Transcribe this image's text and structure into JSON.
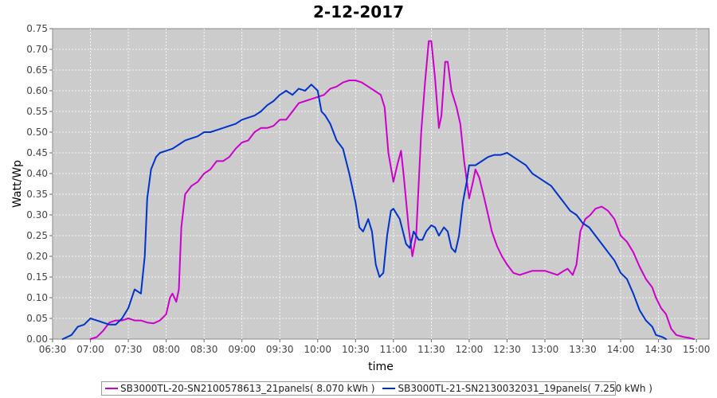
{
  "chart_data": {
    "type": "line",
    "title": "2-12-2017",
    "xlabel": "time",
    "ylabel": "Watt/Wp",
    "xlim": [
      "06:30",
      "15:10"
    ],
    "ylim": [
      0,
      0.75
    ],
    "x_ticks": [
      "06:30",
      "07:00",
      "07:30",
      "08:00",
      "08:30",
      "09:00",
      "09:30",
      "10:00",
      "10:30",
      "11:00",
      "11:30",
      "12:00",
      "12:30",
      "13:00",
      "13:30",
      "14:00",
      "14:30",
      "15:00"
    ],
    "y_ticks": [
      "0.00",
      "0.05",
      "0.10",
      "0.15",
      "0.20",
      "0.25",
      "0.30",
      "0.35",
      "0.40",
      "0.45",
      "0.50",
      "0.55",
      "0.60",
      "0.65",
      "0.70",
      "0.75"
    ],
    "grid": true,
    "legend_position": "bottom",
    "background": "#cccccc",
    "series": [
      {
        "name": "SB3000TL-20-SN2100578613_21panels( 8.070 kWh )",
        "color": "#cc00cc",
        "points": [
          [
            "07:00",
            0.0
          ],
          [
            "07:05",
            0.005
          ],
          [
            "07:10",
            0.02
          ],
          [
            "07:15",
            0.04
          ],
          [
            "07:20",
            0.045
          ],
          [
            "07:25",
            0.045
          ],
          [
            "07:30",
            0.05
          ],
          [
            "07:35",
            0.045
          ],
          [
            "07:40",
            0.045
          ],
          [
            "07:45",
            0.04
          ],
          [
            "07:50",
            0.038
          ],
          [
            "07:55",
            0.045
          ],
          [
            "08:00",
            0.06
          ],
          [
            "08:03",
            0.1
          ],
          [
            "08:05",
            0.11
          ],
          [
            "08:08",
            0.09
          ],
          [
            "08:10",
            0.12
          ],
          [
            "08:12",
            0.27
          ],
          [
            "08:15",
            0.35
          ],
          [
            "08:20",
            0.37
          ],
          [
            "08:25",
            0.38
          ],
          [
            "08:30",
            0.4
          ],
          [
            "08:35",
            0.41
          ],
          [
            "08:40",
            0.43
          ],
          [
            "08:45",
            0.43
          ],
          [
            "08:50",
            0.44
          ],
          [
            "08:55",
            0.46
          ],
          [
            "09:00",
            0.475
          ],
          [
            "09:05",
            0.48
          ],
          [
            "09:10",
            0.5
          ],
          [
            "09:15",
            0.51
          ],
          [
            "09:20",
            0.51
          ],
          [
            "09:25",
            0.515
          ],
          [
            "09:30",
            0.53
          ],
          [
            "09:35",
            0.53
          ],
          [
            "09:40",
            0.55
          ],
          [
            "09:45",
            0.57
          ],
          [
            "09:50",
            0.575
          ],
          [
            "09:55",
            0.58
          ],
          [
            "10:00",
            0.585
          ],
          [
            "10:05",
            0.59
          ],
          [
            "10:10",
            0.605
          ],
          [
            "10:15",
            0.61
          ],
          [
            "10:20",
            0.62
          ],
          [
            "10:25",
            0.625
          ],
          [
            "10:30",
            0.625
          ],
          [
            "10:35",
            0.62
          ],
          [
            "10:40",
            0.61
          ],
          [
            "10:45",
            0.6
          ],
          [
            "10:50",
            0.59
          ],
          [
            "10:53",
            0.56
          ],
          [
            "10:56",
            0.45
          ],
          [
            "11:00",
            0.38
          ],
          [
            "11:03",
            0.42
          ],
          [
            "11:06",
            0.455
          ],
          [
            "11:08",
            0.4
          ],
          [
            "11:12",
            0.27
          ],
          [
            "11:15",
            0.2
          ],
          [
            "11:18",
            0.25
          ],
          [
            "11:22",
            0.5
          ],
          [
            "11:25",
            0.62
          ],
          [
            "11:28",
            0.72
          ],
          [
            "11:30",
            0.72
          ],
          [
            "11:33",
            0.63
          ],
          [
            "11:36",
            0.51
          ],
          [
            "11:38",
            0.54
          ],
          [
            "11:41",
            0.67
          ],
          [
            "11:43",
            0.67
          ],
          [
            "11:46",
            0.6
          ],
          [
            "11:50",
            0.56
          ],
          [
            "11:53",
            0.52
          ],
          [
            "11:56",
            0.43
          ],
          [
            "12:00",
            0.34
          ],
          [
            "12:03",
            0.38
          ],
          [
            "12:05",
            0.41
          ],
          [
            "12:08",
            0.39
          ],
          [
            "12:12",
            0.34
          ],
          [
            "12:15",
            0.3
          ],
          [
            "12:18",
            0.26
          ],
          [
            "12:22",
            0.225
          ],
          [
            "12:26",
            0.2
          ],
          [
            "12:30",
            0.18
          ],
          [
            "12:35",
            0.16
          ],
          [
            "12:40",
            0.155
          ],
          [
            "12:45",
            0.16
          ],
          [
            "12:50",
            0.165
          ],
          [
            "13:00",
            0.165
          ],
          [
            "13:05",
            0.16
          ],
          [
            "13:10",
            0.155
          ],
          [
            "13:15",
            0.165
          ],
          [
            "13:18",
            0.17
          ],
          [
            "13:22",
            0.155
          ],
          [
            "13:25",
            0.18
          ],
          [
            "13:28",
            0.26
          ],
          [
            "13:32",
            0.29
          ],
          [
            "13:36",
            0.3
          ],
          [
            "13:40",
            0.315
          ],
          [
            "13:45",
            0.32
          ],
          [
            "13:50",
            0.31
          ],
          [
            "13:55",
            0.29
          ],
          [
            "14:00",
            0.25
          ],
          [
            "14:05",
            0.235
          ],
          [
            "14:10",
            0.21
          ],
          [
            "14:15",
            0.175
          ],
          [
            "14:20",
            0.145
          ],
          [
            "14:25",
            0.125
          ],
          [
            "14:28",
            0.1
          ],
          [
            "14:32",
            0.075
          ],
          [
            "14:36",
            0.06
          ],
          [
            "14:40",
            0.025
          ],
          [
            "14:44",
            0.01
          ],
          [
            "14:50",
            0.005
          ],
          [
            "14:54",
            0.003
          ],
          [
            "14:58",
            0.0
          ]
        ]
      },
      {
        "name": "SB3000TL-21-SN2130032031_19panels( 7.250 kWh )",
        "color": "#0033cc",
        "points": [
          [
            "06:38",
            0.0
          ],
          [
            "06:45",
            0.01
          ],
          [
            "06:50",
            0.03
          ],
          [
            "06:55",
            0.035
          ],
          [
            "07:00",
            0.05
          ],
          [
            "07:05",
            0.045
          ],
          [
            "07:10",
            0.04
          ],
          [
            "07:15",
            0.035
          ],
          [
            "07:20",
            0.035
          ],
          [
            "07:25",
            0.05
          ],
          [
            "07:30",
            0.075
          ],
          [
            "07:35",
            0.12
          ],
          [
            "07:40",
            0.11
          ],
          [
            "07:43",
            0.2
          ],
          [
            "07:45",
            0.34
          ],
          [
            "07:48",
            0.41
          ],
          [
            "07:52",
            0.44
          ],
          [
            "07:55",
            0.45
          ],
          [
            "08:00",
            0.455
          ],
          [
            "08:05",
            0.46
          ],
          [
            "08:10",
            0.47
          ],
          [
            "08:15",
            0.48
          ],
          [
            "08:20",
            0.485
          ],
          [
            "08:25",
            0.49
          ],
          [
            "08:30",
            0.5
          ],
          [
            "08:35",
            0.5
          ],
          [
            "08:40",
            0.505
          ],
          [
            "08:45",
            0.51
          ],
          [
            "08:50",
            0.515
          ],
          [
            "08:55",
            0.52
          ],
          [
            "09:00",
            0.53
          ],
          [
            "09:05",
            0.535
          ],
          [
            "09:10",
            0.54
          ],
          [
            "09:15",
            0.55
          ],
          [
            "09:20",
            0.565
          ],
          [
            "09:25",
            0.575
          ],
          [
            "09:30",
            0.59
          ],
          [
            "09:35",
            0.6
          ],
          [
            "09:40",
            0.59
          ],
          [
            "09:45",
            0.605
          ],
          [
            "09:50",
            0.6
          ],
          [
            "09:55",
            0.615
          ],
          [
            "10:00",
            0.6
          ],
          [
            "10:03",
            0.55
          ],
          [
            "10:06",
            0.54
          ],
          [
            "10:10",
            0.52
          ],
          [
            "10:15",
            0.48
          ],
          [
            "10:20",
            0.46
          ],
          [
            "10:25",
            0.4
          ],
          [
            "10:30",
            0.33
          ],
          [
            "10:33",
            0.27
          ],
          [
            "10:36",
            0.26
          ],
          [
            "10:40",
            0.29
          ],
          [
            "10:43",
            0.26
          ],
          [
            "10:46",
            0.18
          ],
          [
            "10:49",
            0.15
          ],
          [
            "10:52",
            0.16
          ],
          [
            "10:55",
            0.25
          ],
          [
            "10:58",
            0.31
          ],
          [
            "11:00",
            0.315
          ],
          [
            "11:05",
            0.29
          ],
          [
            "11:10",
            0.23
          ],
          [
            "11:13",
            0.22
          ],
          [
            "11:16",
            0.26
          ],
          [
            "11:20",
            0.24
          ],
          [
            "11:23",
            0.24
          ],
          [
            "11:26",
            0.26
          ],
          [
            "11:30",
            0.275
          ],
          [
            "11:33",
            0.27
          ],
          [
            "11:36",
            0.25
          ],
          [
            "11:40",
            0.27
          ],
          [
            "11:43",
            0.26
          ],
          [
            "11:46",
            0.22
          ],
          [
            "11:49",
            0.21
          ],
          [
            "11:52",
            0.25
          ],
          [
            "11:55",
            0.33
          ],
          [
            "11:58",
            0.38
          ],
          [
            "12:00",
            0.42
          ],
          [
            "12:05",
            0.42
          ],
          [
            "12:10",
            0.43
          ],
          [
            "12:15",
            0.44
          ],
          [
            "12:20",
            0.445
          ],
          [
            "12:25",
            0.445
          ],
          [
            "12:30",
            0.45
          ],
          [
            "12:35",
            0.44
          ],
          [
            "12:40",
            0.43
          ],
          [
            "12:45",
            0.42
          ],
          [
            "12:50",
            0.4
          ],
          [
            "12:55",
            0.39
          ],
          [
            "13:00",
            0.38
          ],
          [
            "13:05",
            0.37
          ],
          [
            "13:10",
            0.35
          ],
          [
            "13:15",
            0.33
          ],
          [
            "13:20",
            0.31
          ],
          [
            "13:25",
            0.3
          ],
          [
            "13:30",
            0.28
          ],
          [
            "13:35",
            0.27
          ],
          [
            "13:40",
            0.25
          ],
          [
            "13:45",
            0.23
          ],
          [
            "13:50",
            0.21
          ],
          [
            "13:55",
            0.19
          ],
          [
            "14:00",
            0.16
          ],
          [
            "14:05",
            0.145
          ],
          [
            "14:10",
            0.11
          ],
          [
            "14:15",
            0.07
          ],
          [
            "14:20",
            0.045
          ],
          [
            "14:25",
            0.03
          ],
          [
            "14:28",
            0.01
          ],
          [
            "14:33",
            0.005
          ],
          [
            "14:36",
            0.0
          ]
        ]
      }
    ]
  }
}
